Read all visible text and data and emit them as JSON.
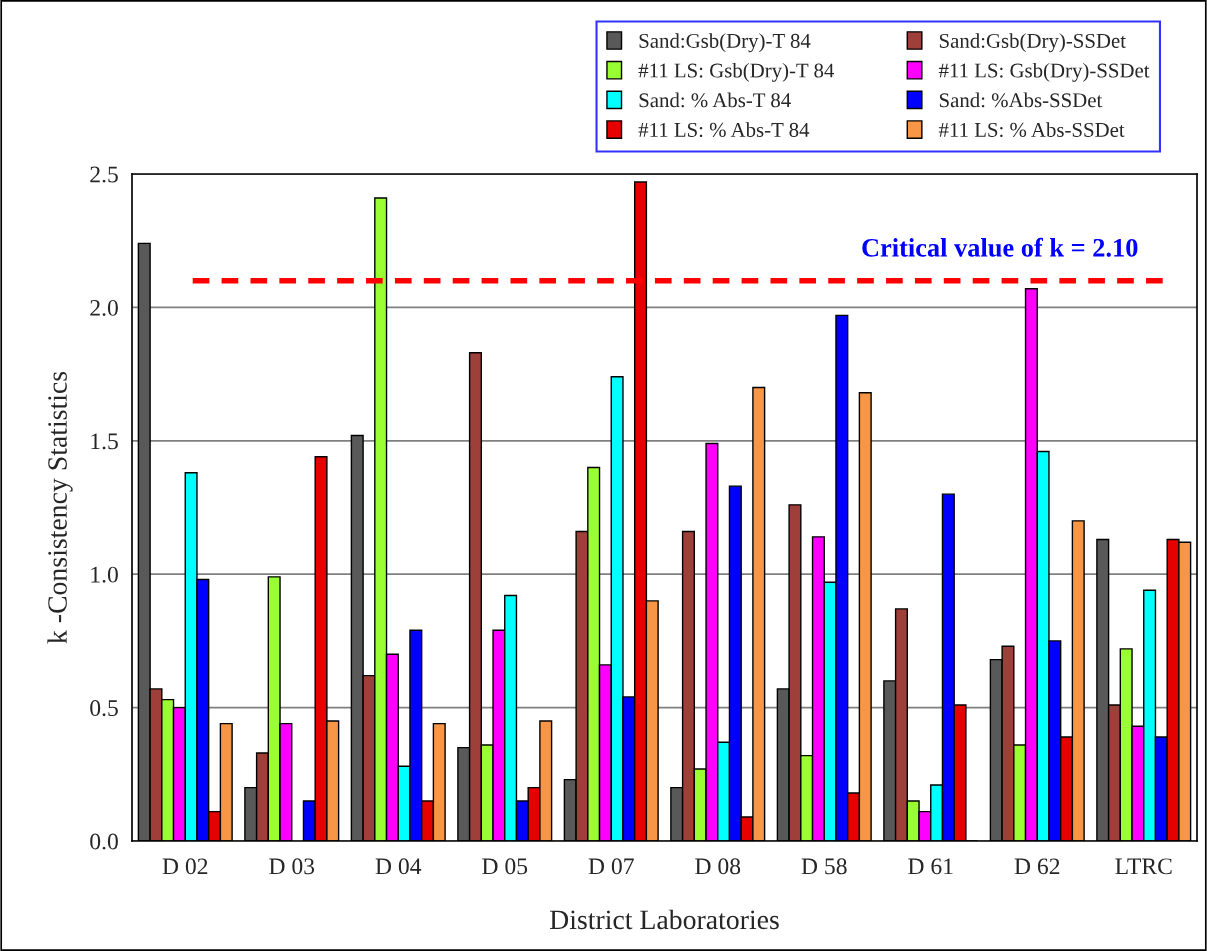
{
  "chart_data": {
    "type": "bar",
    "ylabel": "k -Consistency Statistics",
    "xlabel": "District Laboratories",
    "categories": [
      "D 02",
      "D 03",
      "D 04",
      "D 05",
      "D 07",
      "D 08",
      "D 58",
      "D 61",
      "D 62",
      "LTRC"
    ],
    "series": [
      {
        "name": "Sand:Gsb(Dry)-T 84",
        "color": "#595959",
        "values": [
          2.24,
          0.2,
          1.52,
          0.35,
          0.23,
          0.2,
          0.57,
          0.6,
          0.68,
          1.13
        ]
      },
      {
        "name": "Sand:Gsb(Dry)-SSDet",
        "color": "#9e3f3a",
        "values": [
          0.57,
          0.33,
          0.62,
          1.83,
          1.16,
          1.16,
          1.26,
          0.87,
          0.73,
          0.51
        ]
      },
      {
        "name": "#11 LS: Gsb(Dry)-T 84",
        "color": "#99ff33",
        "values": [
          0.53,
          0.99,
          2.41,
          0.36,
          1.4,
          0.27,
          0.32,
          0.15,
          0.36,
          0.72
        ]
      },
      {
        "name": "#11 LS: Gsb(Dry)-SSDet",
        "color": "#ff00ff",
        "values": [
          0.5,
          0.44,
          0.7,
          0.79,
          0.66,
          1.49,
          1.14,
          0.11,
          2.07,
          0.43
        ]
      },
      {
        "name": "Sand: % Abs-T 84",
        "color": "#00ffff",
        "values": [
          1.38,
          null,
          0.28,
          0.92,
          1.74,
          0.37,
          0.97,
          0.21,
          1.46,
          0.94
        ]
      },
      {
        "name": "Sand: %Abs-SSDet",
        "color": "#0000ff",
        "values": [
          0.98,
          0.15,
          0.79,
          0.15,
          0.54,
          1.33,
          1.97,
          1.3,
          0.75,
          0.39
        ]
      },
      {
        "name": "#11 LS: % Abs-T 84",
        "color": "#e60000",
        "values": [
          0.11,
          1.44,
          0.15,
          0.2,
          2.47,
          0.09,
          0.18,
          0.51,
          0.39,
          1.13
        ]
      },
      {
        "name": "#11 LS: % Abs-SSDet",
        "color": "#f79646",
        "values": [
          0.44,
          0.45,
          0.44,
          0.45,
          0.9,
          1.7,
          1.68,
          0.0,
          1.2,
          1.12
        ]
      }
    ],
    "ylim": [
      0,
      2.5
    ],
    "yticks": [
      {
        "value": 0,
        "label": "0.0"
      },
      {
        "value": 0.5,
        "label": "0.5"
      },
      {
        "value": 1,
        "label": "1.0"
      },
      {
        "value": 1.5,
        "label": "1.5"
      },
      {
        "value": 2,
        "label": "2.0"
      },
      {
        "value": 2.5,
        "label": "2.5"
      }
    ],
    "grid": "y",
    "legend": "top right",
    "ref_lines": [
      {
        "axis": "y",
        "value": 2.1,
        "label": "Critical value of k = 2.10",
        "color": "#ff0000",
        "line_style": "dashed"
      }
    ]
  }
}
